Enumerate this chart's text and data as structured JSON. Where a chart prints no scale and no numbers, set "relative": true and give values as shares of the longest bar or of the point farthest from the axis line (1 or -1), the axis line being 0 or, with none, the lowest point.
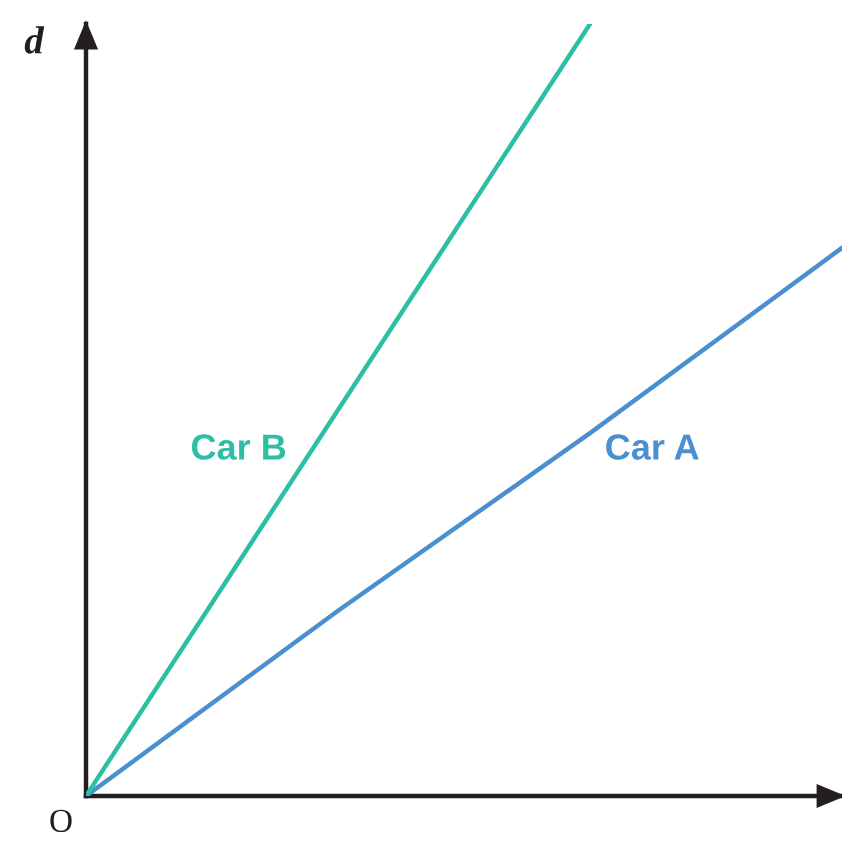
{
  "chart_data": {
    "type": "line",
    "relative": true,
    "ylabel": "d",
    "annotations": [
      "O"
    ],
    "line_style": "solid",
    "categories": [
      null,
      null,
      null,
      null
    ],
    "series": [
      {
        "name": "Car A",
        "color": "#4a8fd0",
        "values": [
          0,
          0.24,
          0.47,
          0.71
        ]
      },
      {
        "name": "Car B",
        "color": "#2cbfa3",
        "values": [
          0,
          0.5,
          1,
          null
        ]
      }
    ]
  }
}
